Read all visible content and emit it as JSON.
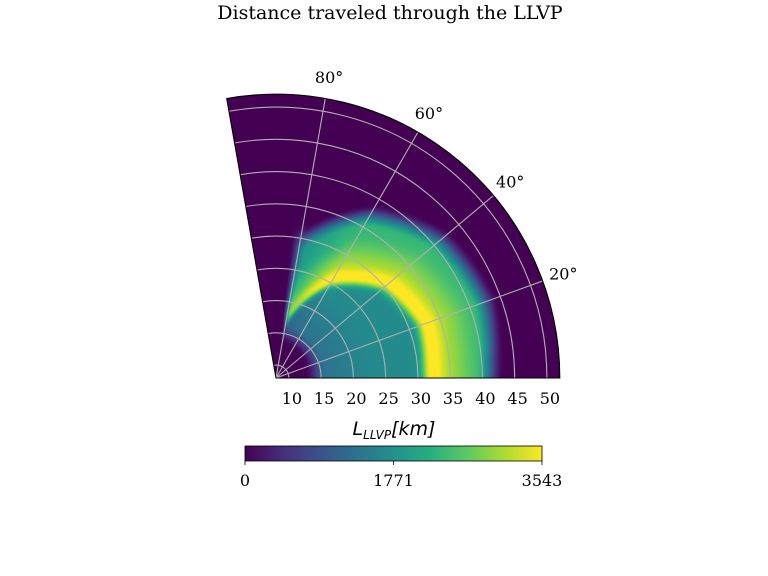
{
  "chart_data": {
    "type": "heatmap",
    "projection": "polar",
    "title": "Distance traveled through the LLVP",
    "theta_unit": "degrees",
    "theta_range": [
      0,
      100
    ],
    "theta_ticks": [
      20,
      40,
      60,
      80
    ],
    "theta_tick_labels": [
      "20°",
      "40°",
      "60°",
      "80°"
    ],
    "r_range": [
      8,
      52
    ],
    "r_ticks": [
      10,
      15,
      20,
      25,
      30,
      35,
      40,
      45,
      50
    ],
    "r_tick_labels": [
      "10",
      "15",
      "20",
      "25",
      "30",
      "35",
      "40",
      "45",
      "50"
    ],
    "grid": true,
    "colormap": "viridis",
    "colorbar": {
      "label_main": "L",
      "label_sub": "LLVP",
      "label_unit": "[km]",
      "min": 0,
      "max": 3543,
      "ticks": [
        0,
        1771,
        3543
      ],
      "tick_labels": [
        "0",
        "1771",
        "3543"
      ],
      "orientation": "horizontal",
      "placement": "bottom"
    },
    "field_description": "Non-zero for r from about 14 to 43 and theta from about 0 to 82 degrees; highest values (~3543) along a narrow caustic ridge running from (r≈32, θ≈5°) to (r≈18, θ≈78°); a broad elevated band (~2500-3000) on the outer side of the ridge; moderate values (~1300-1700) on the inner side.",
    "ridge": [
      [
        32,
        5
      ],
      [
        32.5,
        20
      ],
      [
        30.5,
        40
      ],
      [
        25.5,
        60
      ],
      [
        18,
        78
      ]
    ]
  }
}
